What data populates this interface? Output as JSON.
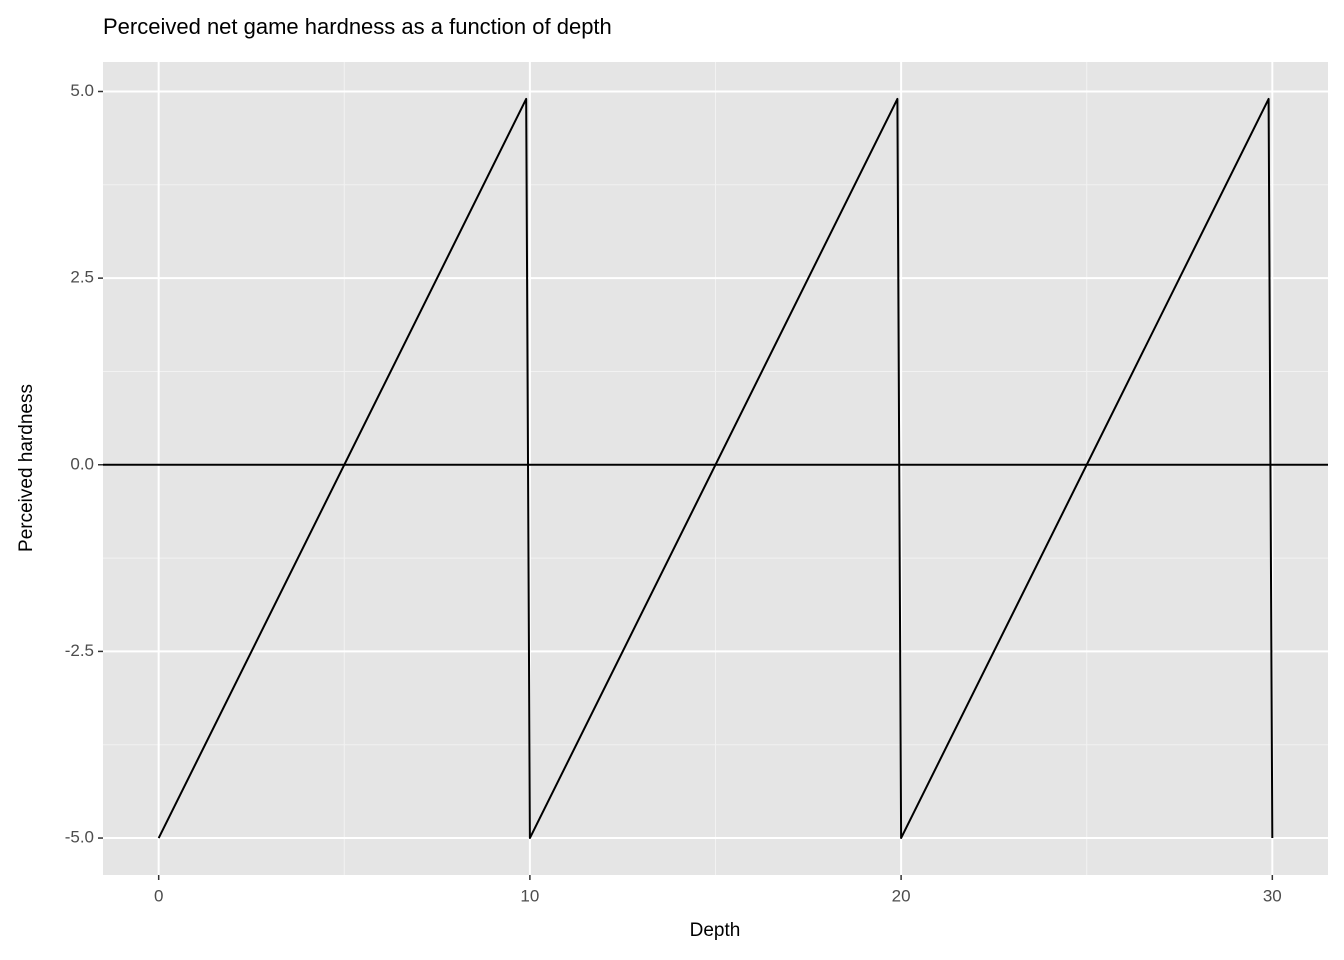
{
  "chart_data": {
    "type": "line",
    "title": "Perceived net game hardness as a function of depth",
    "x_label": "Depth",
    "y_label": "Perceived hardness",
    "x": [
      0,
      9.9,
      10,
      19.9,
      20,
      29.9,
      30
    ],
    "series": [
      {
        "name": "hardness",
        "color": "#000000",
        "values": [
          -5,
          4.9,
          -5,
          4.9,
          -5,
          4.9,
          -5
        ]
      }
    ],
    "hline": 0,
    "xlim": [
      -1.5,
      31.5
    ],
    "ylim": [
      -5.495,
      5.395
    ],
    "xticks": [
      0,
      10,
      20,
      30
    ],
    "yticks": [
      {
        "value": -5,
        "label": "-5.0"
      },
      -2.5,
      {
        "value": 0,
        "label": "0.0"
      },
      2.5,
      {
        "value": 5,
        "label": "5.0"
      }
    ],
    "grid": true
  }
}
